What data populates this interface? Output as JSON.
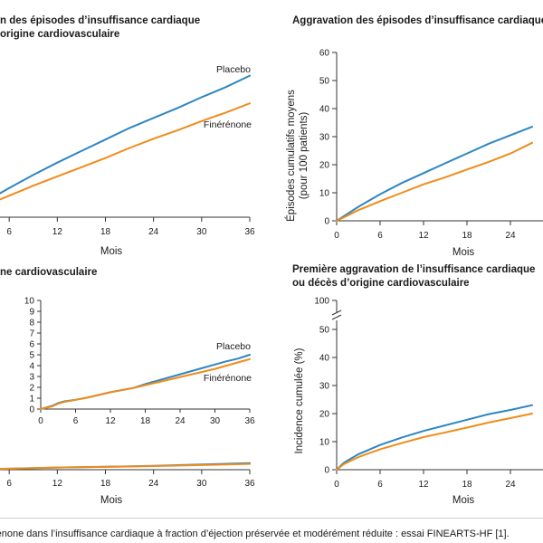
{
  "panels": {
    "p1": {
      "title_line1": "n des épisodes d’insuffisance cardiaque",
      "title_line2": "origine cardiovasculaire"
    },
    "p2": {
      "title_line1": "Aggravation des épisodes d’insuffisance cardiaque"
    },
    "p3": {
      "title_line1": "ne cardiovasculaire"
    },
    "p4": {
      "title_line1": "Première aggravation de l’insuffisance cardiaque",
      "title_line2": "ou décès d’origine cardiovasculaire"
    }
  },
  "caption": "rénone dans l’insuffisance cardiaque à fraction d’éjection préservée et modérément réduite : essai FINEARTS-HF [1].",
  "colors": {
    "placebo": "#2e86c1",
    "finerenone": "#ef8c1a",
    "axis": "#333333"
  },
  "chart_data": [
    {
      "id": "top-left",
      "type": "line",
      "title": "n des épisodes d’insuffisance cardiaque origine cardiovasculaire",
      "xlabel": "Mois",
      "ylabel": "",
      "x_ticks": [
        "6",
        "12",
        "18",
        "24",
        "30",
        "36"
      ],
      "xlim": [
        0,
        36
      ],
      "grid": false,
      "series": [
        {
          "name": "Placebo",
          "x": [
            0,
            3,
            6,
            9,
            12,
            15,
            18,
            21,
            24,
            27,
            30,
            33,
            36
          ],
          "values": [
            0,
            10,
            19,
            27.5,
            35.5,
            43,
            50.5,
            58,
            64.5,
            71,
            78,
            84.5,
            92
          ]
        },
        {
          "name": "Finérénone",
          "x": [
            0,
            3,
            6,
            9,
            12,
            15,
            18,
            21,
            24,
            27,
            30,
            33,
            36
          ],
          "values": [
            0,
            7.5,
            14,
            20.5,
            26.5,
            32.5,
            38.5,
            45,
            51,
            56.5,
            62.5,
            68,
            74
          ]
        }
      ]
    },
    {
      "id": "top-right",
      "type": "line",
      "title": "Aggravation des épisodes d’insuffisance cardiaque",
      "xlabel": "Mois",
      "ylabel": "Épisodes cumulatifs moyens (pour 100 patients)",
      "ylabel_line1": "Épisodes cumulatifs moyens",
      "ylabel_line2": "(pour 100 patients)",
      "x_ticks": [
        "0",
        "6",
        "12",
        "18",
        "24"
      ],
      "y_ticks": [
        "0",
        "10",
        "20",
        "30",
        "40",
        "50",
        "60"
      ],
      "xlim": [
        0,
        36
      ],
      "ylim": [
        0,
        60
      ],
      "grid": false,
      "series": [
        {
          "name": "Placebo",
          "x": [
            0,
            3,
            6,
            9,
            12,
            15,
            18,
            21,
            24,
            27
          ],
          "values": [
            0,
            5,
            9.5,
            13.5,
            17,
            20.5,
            24,
            27.5,
            30.5,
            33.5
          ]
        },
        {
          "name": "Finérénone",
          "x": [
            0,
            3,
            6,
            9,
            12,
            15,
            18,
            21,
            24,
            27
          ],
          "values": [
            0,
            3.8,
            7,
            10,
            13,
            15.5,
            18.3,
            21,
            24,
            27.8
          ]
        }
      ]
    },
    {
      "id": "bottom-left",
      "type": "line",
      "title": "ne cardiovasculaire",
      "xlabel": "Mois",
      "ylabel": "",
      "x_ticks": [
        "6",
        "12",
        "18",
        "24",
        "30",
        "36"
      ],
      "xlim": [
        0,
        36
      ],
      "grid": false,
      "series": [
        {
          "name": "",
          "x": [
            0,
            6,
            12,
            18,
            24,
            30,
            36
          ],
          "values": [
            0,
            0.8,
            1.7,
            2.3,
            3.1,
            4.2,
            5.2
          ]
        },
        {
          "name": "",
          "x": [
            0,
            6,
            12,
            18,
            24,
            30,
            36
          ],
          "values": [
            0,
            0.8,
            1.7,
            2.2,
            2.9,
            3.7,
            4.6
          ]
        }
      ],
      "inset": {
        "xlim": [
          0,
          36
        ],
        "ylim": [
          0,
          10
        ],
        "x_ticks": [
          "0",
          "6",
          "12",
          "18",
          "24",
          "30",
          "36"
        ],
        "y_ticks": [
          "0",
          "1",
          "2",
          "3",
          "4",
          "5",
          "6",
          "7",
          "8",
          "9",
          "10"
        ],
        "series": [
          {
            "name": "Placebo",
            "x": [
              0,
              2,
              3,
              4,
              6,
              8,
              10,
              12,
              14,
              16,
              18,
              20,
              22,
              24,
              26,
              28,
              30,
              32,
              34,
              36
            ],
            "values": [
              0,
              0.3,
              0.55,
              0.7,
              0.85,
              1.05,
              1.3,
              1.55,
              1.75,
              1.95,
              2.3,
              2.6,
              2.9,
              3.2,
              3.5,
              3.8,
              4.1,
              4.4,
              4.65,
              5.0
            ]
          },
          {
            "name": "Finérénone",
            "x": [
              0,
              2,
              3,
              4,
              6,
              8,
              10,
              12,
              14,
              16,
              18,
              20,
              22,
              24,
              26,
              28,
              30,
              32,
              34,
              36
            ],
            "values": [
              0,
              0.25,
              0.5,
              0.65,
              0.85,
              1.05,
              1.3,
              1.55,
              1.75,
              1.95,
              2.2,
              2.45,
              2.7,
              2.95,
              3.2,
              3.45,
              3.7,
              4.0,
              4.3,
              4.6
            ]
          }
        ]
      }
    },
    {
      "id": "bottom-right",
      "type": "line",
      "title": "Première aggravation de l’insuffisance cardiaque ou décès d’origine cardiovasculaire",
      "xlabel": "Mois",
      "ylabel": "Incidence cumulée (%)",
      "x_ticks": [
        "0",
        "6",
        "12",
        "18",
        "24"
      ],
      "y_ticks": [
        "0",
        "10",
        "20",
        "30",
        "40",
        "50",
        "100"
      ],
      "axis_break": "between 50 and 100",
      "xlim": [
        0,
        36
      ],
      "ylim": [
        0,
        100
      ],
      "grid": false,
      "series": [
        {
          "name": "Placebo",
          "x": [
            0,
            1,
            3,
            6,
            9,
            12,
            15,
            18,
            21,
            24,
            27
          ],
          "values": [
            0,
            2.5,
            5.5,
            8.8,
            11.5,
            13.8,
            15.8,
            17.8,
            19.8,
            21.3,
            23
          ]
        },
        {
          "name": "Finérénone",
          "x": [
            0,
            1,
            3,
            6,
            9,
            12,
            15,
            18,
            21,
            24,
            27
          ],
          "values": [
            0,
            2,
            4.5,
            7.3,
            9.5,
            11.6,
            13.3,
            15,
            16.8,
            18.4,
            20
          ]
        }
      ]
    }
  ]
}
